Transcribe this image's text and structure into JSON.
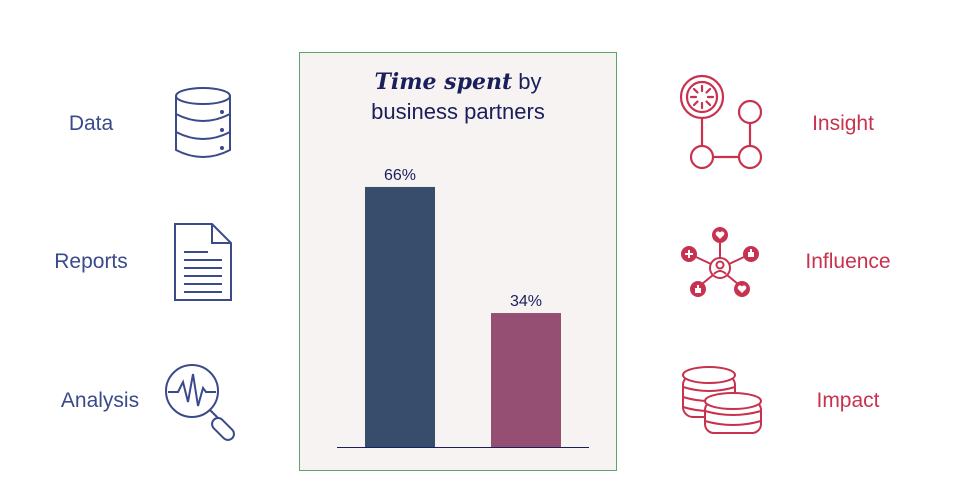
{
  "left_items": [
    {
      "label": "Data",
      "icon": "database-icon"
    },
    {
      "label": "Reports",
      "icon": "document-icon"
    },
    {
      "label": "Analysis",
      "icon": "magnifier-pulse-icon"
    }
  ],
  "right_items": [
    {
      "label": "Insight",
      "icon": "insight-network-icon"
    },
    {
      "label": "Influence",
      "icon": "social-hub-icon"
    },
    {
      "label": "Impact",
      "icon": "coins-icon"
    }
  ],
  "chart_data": {
    "type": "bar",
    "title_emphasis": "Time spent",
    "title_rest_line1": " by",
    "title_line2": "business partners",
    "categories": [
      "",
      ""
    ],
    "values": [
      66,
      34
    ],
    "value_labels": [
      "66%",
      "34%"
    ],
    "colors": [
      "#384c6c",
      "#954f72"
    ],
    "ylim": [
      0,
      100
    ],
    "grid": false,
    "xlabel": "",
    "ylabel": ""
  },
  "colors": {
    "left_accent": "#3a4a8a",
    "right_accent": "#c8324f",
    "panel_background": "#f6f3f2",
    "panel_border": "#5ea36a"
  }
}
